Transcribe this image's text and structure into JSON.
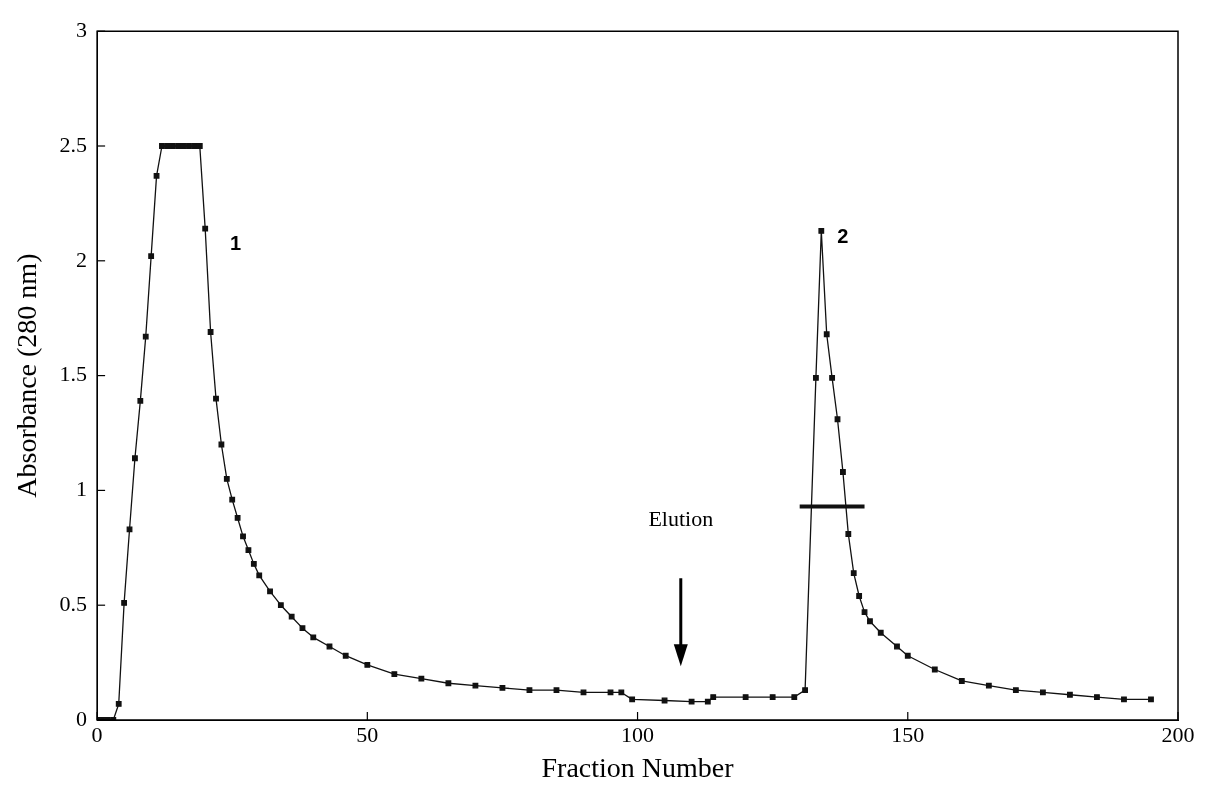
{
  "chart_data": {
    "type": "line",
    "xlabel": "Fraction Number",
    "ylabel": "Absorbance (280 nm)",
    "xlim": [
      0,
      200
    ],
    "xticks": [
      0,
      50,
      100,
      150,
      200
    ],
    "ylim": [
      0,
      3
    ],
    "yticks": [
      0,
      0.5,
      1,
      1.5,
      2,
      2.5,
      3
    ],
    "grid": false,
    "legend": false,
    "marker": "square",
    "line_style": "solid",
    "series": [
      {
        "color": "#111111",
        "x": [
          0,
          1,
          2,
          3,
          4,
          5,
          6,
          7,
          8,
          9,
          10,
          11,
          12,
          13,
          14,
          15,
          16,
          17,
          18,
          19,
          20,
          21,
          22,
          23,
          24,
          25,
          26,
          27,
          28,
          29,
          30,
          32,
          34,
          36,
          38,
          40,
          43,
          46,
          50,
          55,
          60,
          65,
          70,
          75,
          80,
          85,
          90,
          95,
          97,
          99,
          105,
          110,
          113,
          114,
          120,
          125,
          129,
          131,
          133,
          134,
          135,
          136,
          137,
          138,
          139,
          140,
          141,
          142,
          143,
          145,
          148,
          150,
          155,
          160,
          165,
          170,
          175,
          180,
          185,
          190,
          195
        ],
        "values": [
          0,
          0,
          0,
          0,
          0.07,
          0.51,
          0.83,
          1.14,
          1.39,
          1.67,
          2.02,
          2.37,
          2.5,
          2.5,
          2.5,
          2.5,
          2.5,
          2.5,
          2.5,
          2.5,
          2.14,
          1.69,
          1.4,
          1.2,
          1.05,
          0.96,
          0.88,
          0.8,
          0.74,
          0.68,
          0.63,
          0.56,
          0.5,
          0.45,
          0.4,
          0.36,
          0.32,
          0.28,
          0.24,
          0.2,
          0.18,
          0.16,
          0.15,
          0.14,
          0.13,
          0.13,
          0.12,
          0.12,
          0.12,
          0.09,
          0.085,
          0.08,
          0.08,
          0.1,
          0.1,
          0.1,
          0.1,
          0.13,
          1.49,
          2.13,
          1.68,
          1.49,
          1.31,
          1.08,
          0.81,
          0.64,
          0.54,
          0.47,
          0.43,
          0.38,
          0.32,
          0.28,
          0.22,
          0.17,
          0.15,
          0.13,
          0.12,
          0.11,
          0.1,
          0.09,
          0.09
        ]
      },
      {
        "color": "#111111",
        "marker": "none",
        "x": [
          130,
          142
        ],
        "values": [
          0.93,
          0.93
        ]
      }
    ],
    "annotations": [
      "Elution",
      "1",
      "2"
    ]
  }
}
